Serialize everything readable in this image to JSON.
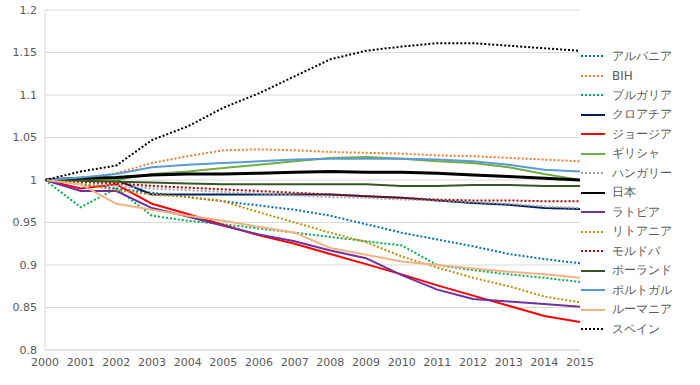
{
  "chart_data": {
    "type": "line",
    "categories": [
      "2000",
      "2001",
      "2002",
      "2003",
      "2004",
      "2005",
      "2006",
      "2007",
      "2008",
      "2009",
      "2010",
      "2011",
      "2012",
      "2013",
      "2014",
      "2015"
    ],
    "ylim": [
      0.8,
      1.2
    ],
    "yticks": [
      0.8,
      0.85,
      0.9,
      0.95,
      1,
      1.05,
      1.1,
      1.15,
      1.2
    ],
    "grid": true,
    "legend": "right",
    "series": [
      {
        "name": "アルバニア",
        "color": "#0070c0",
        "line_style": "dotted",
        "values": [
          1,
          0.995,
          0.99,
          0.985,
          0.98,
          0.975,
          0.97,
          0.965,
          0.958,
          0.948,
          0.938,
          0.93,
          0.922,
          0.913,
          0.907,
          0.902
        ]
      },
      {
        "name": "BIH",
        "color": "#ed7d31",
        "line_style": "dotted",
        "values": [
          1,
          1.0,
          1.008,
          1.02,
          1.028,
          1.035,
          1.036,
          1.035,
          1.033,
          1.032,
          1.031,
          1.029,
          1.028,
          1.026,
          1.024,
          1.022
        ]
      },
      {
        "name": "ブルガリア",
        "color": "#00b050",
        "line_style": "dotted",
        "values": [
          1,
          0.968,
          0.99,
          0.958,
          0.952,
          0.948,
          0.943,
          0.938,
          0.933,
          0.928,
          0.923,
          0.9,
          0.894,
          0.889,
          0.885,
          0.88
        ]
      },
      {
        "name": "クロアチア",
        "color": "#002060",
        "line_style": "solid",
        "values": [
          1,
          1.0,
          1.0,
          0.983,
          0.983,
          0.983,
          0.983,
          0.983,
          0.983,
          0.981,
          0.979,
          0.976,
          0.973,
          0.971,
          0.967,
          0.966
        ]
      },
      {
        "name": "ジョージア",
        "color": "#ff0000",
        "line_style": "solid",
        "values": [
          1,
          0.99,
          0.995,
          0.972,
          0.96,
          0.947,
          0.935,
          0.925,
          0.913,
          0.901,
          0.889,
          0.876,
          0.864,
          0.852,
          0.84,
          0.833
        ]
      },
      {
        "name": "ギリシャ",
        "color": "#70ad47",
        "line_style": "solid",
        "values": [
          1,
          1.0,
          1.0,
          1.007,
          1.01,
          1.014,
          1.018,
          1.022,
          1.026,
          1.027,
          1.025,
          1.022,
          1.02,
          1.015,
          1.007,
          1.0
        ]
      },
      {
        "name": "ハンガリー",
        "color": "#a5a5a5",
        "line_style": "dotted",
        "values": [
          1,
          0.997,
          0.993,
          0.99,
          0.988,
          0.986,
          0.984,
          0.982,
          0.98,
          0.979,
          0.977,
          0.976,
          0.974,
          0.972,
          0.969,
          0.967
        ]
      },
      {
        "name": "日本",
        "color": "#000000",
        "line_style": "solid",
        "values": [
          1,
          1.002,
          1.003,
          1.006,
          1.007,
          1.007,
          1.008,
          1.009,
          1.01,
          1.009,
          1.009,
          1.008,
          1.006,
          1.004,
          1.002,
          1.0
        ]
      },
      {
        "name": "ラトビア",
        "color": "#7030a0",
        "line_style": "solid",
        "values": [
          1,
          0.987,
          0.987,
          0.967,
          0.957,
          0.946,
          0.936,
          0.928,
          0.917,
          0.908,
          0.888,
          0.871,
          0.86,
          0.857,
          0.854,
          0.851
        ]
      },
      {
        "name": "リトアニア",
        "color": "#bf8f00",
        "line_style": "dotted",
        "values": [
          1,
          0.996,
          0.988,
          0.983,
          0.98,
          0.975,
          0.962,
          0.95,
          0.938,
          0.927,
          0.91,
          0.897,
          0.885,
          0.875,
          0.863,
          0.856
        ]
      },
      {
        "name": "モルドバ",
        "color": "#c00000",
        "line_style": "dotted",
        "values": [
          1,
          0.998,
          0.996,
          0.993,
          0.991,
          0.989,
          0.987,
          0.985,
          0.983,
          0.981,
          0.979,
          0.977,
          0.976,
          0.976,
          0.975,
          0.975
        ]
      },
      {
        "name": "ポーランド",
        "color": "#375623",
        "line_style": "solid",
        "values": [
          1,
          0.999,
          0.998,
          0.997,
          0.996,
          0.995,
          0.995,
          0.995,
          0.995,
          0.995,
          0.993,
          0.993,
          0.994,
          0.994,
          0.993,
          0.993
        ]
      },
      {
        "name": "ポルトガル",
        "color": "#5b9bd5",
        "line_style": "solid",
        "values": [
          1,
          1.003,
          1.007,
          1.015,
          1.018,
          1.02,
          1.022,
          1.024,
          1.025,
          1.025,
          1.025,
          1.024,
          1.022,
          1.018,
          1.012,
          1.01
        ]
      },
      {
        "name": "ルーマニア",
        "color": "#f4b183",
        "line_style": "solid",
        "values": [
          1,
          0.995,
          0.972,
          0.965,
          0.958,
          0.952,
          0.945,
          0.938,
          0.92,
          0.912,
          0.904,
          0.9,
          0.896,
          0.892,
          0.889,
          0.885
        ]
      },
      {
        "name": "スペイン",
        "color": "#000000",
        "line_style": "dotted",
        "values": [
          1,
          1.01,
          1.017,
          1.047,
          1.063,
          1.085,
          1.102,
          1.122,
          1.142,
          1.152,
          1.157,
          1.161,
          1.161,
          1.158,
          1.155,
          1.152
        ]
      }
    ]
  }
}
